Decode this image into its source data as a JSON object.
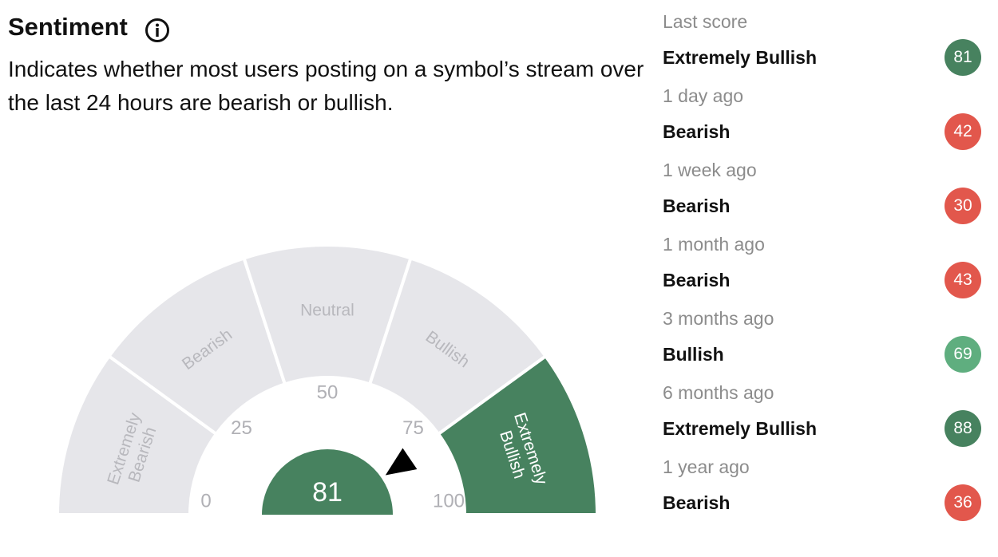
{
  "header": {
    "title": "Sentiment",
    "description": "Indicates whether most users posting on a symbol’s stream over the last 24 hours are bearish or bullish."
  },
  "gauge": {
    "score": 81,
    "score_color": "#47825f",
    "needle_color": "#000000",
    "min": 0,
    "max": 100,
    "scale": [
      0,
      25,
      50,
      75,
      100
    ],
    "segments": [
      {
        "label": "Extremely Bearish",
        "color": "#e6e6ea",
        "text_color": "#b8b8bd"
      },
      {
        "label": "Bearish",
        "color": "#e6e6ea",
        "text_color": "#b8b8bd"
      },
      {
        "label": "Neutral",
        "color": "#e6e6ea",
        "text_color": "#b8b8bd"
      },
      {
        "label": "Bullish",
        "color": "#e6e6ea",
        "text_color": "#b8b8bd"
      },
      {
        "label": "Extremely Bullish",
        "color": "#47825f",
        "text_color": "#ffffff"
      }
    ]
  },
  "history": {
    "items": [
      {
        "period": "Last score",
        "sentiment": "Extremely Bullish",
        "score": 81,
        "color": "#47825f"
      },
      {
        "period": "1 day ago",
        "sentiment": "Bearish",
        "score": 42,
        "color": "#e2574c"
      },
      {
        "period": "1 week ago",
        "sentiment": "Bearish",
        "score": 30,
        "color": "#e2574c"
      },
      {
        "period": "1 month ago",
        "sentiment": "Bearish",
        "score": 43,
        "color": "#e2574c"
      },
      {
        "period": "3 months ago",
        "sentiment": "Bullish",
        "score": 69,
        "color": "#5fae7f"
      },
      {
        "period": "6 months ago",
        "sentiment": "Extremely Bullish",
        "score": 88,
        "color": "#47825f"
      },
      {
        "period": "1 year ago",
        "sentiment": "Bearish",
        "score": 36,
        "color": "#e2574c"
      }
    ]
  }
}
